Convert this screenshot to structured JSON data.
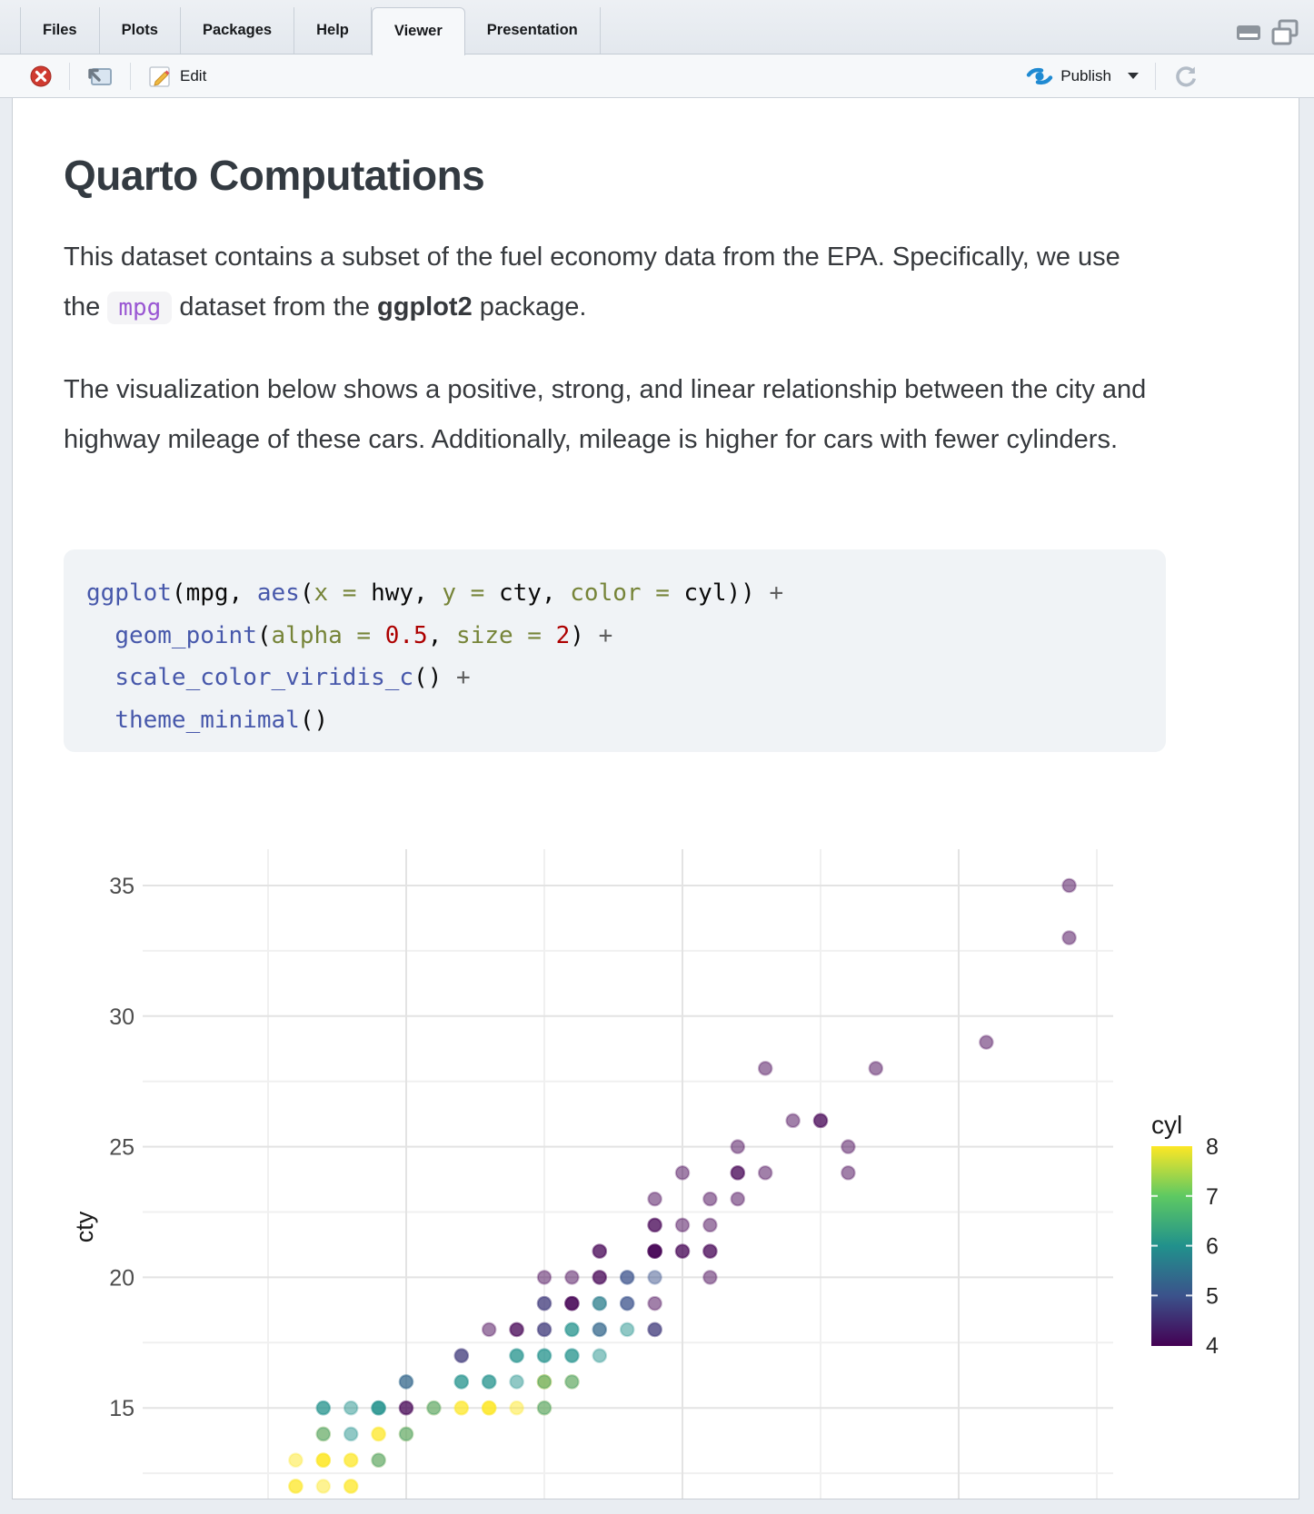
{
  "window": {
    "tabs": [
      {
        "label": "Files",
        "active": false
      },
      {
        "label": "Plots",
        "active": false
      },
      {
        "label": "Packages",
        "active": false
      },
      {
        "label": "Help",
        "active": false
      },
      {
        "label": "Viewer",
        "active": true
      },
      {
        "label": "Presentation",
        "active": false
      }
    ]
  },
  "toolbar": {
    "edit_label": "Edit",
    "publish_label": "Publish"
  },
  "document": {
    "title": "Quarto Computations",
    "paragraph1": [
      {
        "type": "text",
        "text": "This dataset contains a subset of the fuel economy data from the EPA. Specifically, we use the "
      },
      {
        "type": "code",
        "text": "mpg"
      },
      {
        "type": "text",
        "text": " dataset from the "
      },
      {
        "type": "bold",
        "text": "ggplot2"
      },
      {
        "type": "text",
        "text": " package."
      }
    ],
    "paragraph2": "The visualization below shows a positive, strong, and linear relationship between the city and highway mileage of these cars. Additionally, mileage is higher for cars with fewer cylinders."
  },
  "code_block": {
    "lines": [
      [
        [
          "fn",
          "ggplot"
        ],
        [
          "pl",
          "(mpg, "
        ],
        [
          "fn",
          "aes"
        ],
        [
          "pl",
          "("
        ],
        [
          "at",
          "x = "
        ],
        [
          "pl",
          "hwy, "
        ],
        [
          "at",
          "y = "
        ],
        [
          "pl",
          "cty, "
        ],
        [
          "at",
          "color = "
        ],
        [
          "pl",
          "cyl)) "
        ],
        [
          "op",
          "+"
        ]
      ],
      [
        [
          "pl",
          "  "
        ],
        [
          "fn",
          "geom_point"
        ],
        [
          "pl",
          "("
        ],
        [
          "at",
          "alpha = "
        ],
        [
          "num",
          "0.5"
        ],
        [
          "pl",
          ", "
        ],
        [
          "at",
          "size = "
        ],
        [
          "num",
          "2"
        ],
        [
          "pl",
          ") "
        ],
        [
          "op",
          "+"
        ]
      ],
      [
        [
          "pl",
          "  "
        ],
        [
          "fn",
          "scale_color_viridis_c"
        ],
        [
          "pl",
          "() "
        ],
        [
          "op",
          "+"
        ]
      ],
      [
        [
          "pl",
          "  "
        ],
        [
          "fn",
          "theme_minimal"
        ],
        [
          "pl",
          "()"
        ]
      ]
    ]
  },
  "colors": {
    "syntax": {
      "fn": "#4758AB",
      "at": "#768438",
      "num": "#AD0000",
      "pl": "#0a0a0a",
      "op": "#5E5E5E"
    },
    "inline_code_text": "#9a57d3",
    "publish_blue": "#1f8ad2",
    "close_red": "#cf3a30",
    "viridis": {
      "4": "#440154",
      "5": "#3b528b",
      "6": "#21918c",
      "7": "#5ec962",
      "8": "#fde725"
    }
  },
  "chart_data": {
    "type": "scatter",
    "x_var": "hwy",
    "y_var": "cty",
    "color_var": "cyl",
    "point_alpha": 0.5,
    "point_size": 2,
    "theme": "minimal",
    "y_axis_title": "cty",
    "y_tick_labels": [
      35,
      30,
      25,
      20,
      15
    ],
    "grid": {
      "y_major": [
        35,
        30,
        25,
        20,
        15
      ],
      "y_minor": [
        32.5,
        27.5,
        22.5,
        17.5,
        12.5
      ],
      "x_major": [
        20,
        30,
        40
      ],
      "x_minor": [
        15,
        25,
        35,
        45
      ]
    },
    "x_range_shown": [
      10.4,
      45.6
    ],
    "y_range_shown": [
      11,
      36.4
    ],
    "legend": {
      "title": "cyl",
      "position": "right",
      "tick_labels": [
        8,
        7,
        6,
        5,
        4
      ],
      "top_value": 8,
      "bottom_value": 4
    },
    "points": [
      [
        44,
        35,
        4
      ],
      [
        44,
        33,
        4
      ],
      [
        41,
        29,
        4
      ],
      [
        33,
        28,
        4
      ],
      [
        37,
        28,
        4
      ],
      [
        34,
        26,
        4
      ],
      [
        35,
        26,
        4
      ],
      [
        35,
        26,
        4
      ],
      [
        32,
        25,
        4
      ],
      [
        36,
        25,
        4
      ],
      [
        30,
        24,
        4
      ],
      [
        32,
        24,
        4
      ],
      [
        32,
        24,
        4
      ],
      [
        33,
        24,
        4
      ],
      [
        36,
        24,
        4
      ],
      [
        29,
        23,
        4
      ],
      [
        31,
        23,
        4
      ],
      [
        32,
        23,
        4
      ],
      [
        29,
        22,
        4
      ],
      [
        29,
        22,
        4
      ],
      [
        30,
        22,
        4
      ],
      [
        31,
        22,
        4
      ],
      [
        27,
        21,
        4
      ],
      [
        27,
        21,
        4
      ],
      [
        29,
        21,
        4
      ],
      [
        29,
        21,
        4
      ],
      [
        29,
        21,
        4
      ],
      [
        29,
        21,
        4
      ],
      [
        30,
        21,
        4
      ],
      [
        30,
        21,
        4
      ],
      [
        31,
        21,
        4
      ],
      [
        31,
        21,
        4
      ],
      [
        25,
        20,
        4
      ],
      [
        26,
        20,
        4
      ],
      [
        27,
        20,
        4
      ],
      [
        27,
        20,
        4
      ],
      [
        28,
        20,
        5
      ],
      [
        28,
        20,
        5
      ],
      [
        29,
        20,
        5
      ],
      [
        31,
        20,
        4
      ],
      [
        25,
        19,
        4
      ],
      [
        25,
        19,
        5
      ],
      [
        26,
        19,
        4
      ],
      [
        26,
        19,
        4
      ],
      [
        26,
        19,
        4
      ],
      [
        27,
        19,
        5
      ],
      [
        27,
        19,
        6
      ],
      [
        28,
        19,
        5
      ],
      [
        28,
        19,
        5
      ],
      [
        29,
        19,
        4
      ],
      [
        23,
        18,
        4
      ],
      [
        24,
        18,
        4
      ],
      [
        24,
        18,
        4
      ],
      [
        25,
        18,
        4
      ],
      [
        25,
        18,
        5
      ],
      [
        26,
        18,
        6
      ],
      [
        26,
        18,
        6
      ],
      [
        27,
        18,
        6
      ],
      [
        27,
        18,
        5
      ],
      [
        28,
        18,
        6
      ],
      [
        29,
        18,
        4
      ],
      [
        29,
        18,
        5
      ],
      [
        22,
        17,
        4
      ],
      [
        22,
        17,
        5
      ],
      [
        24,
        17,
        6
      ],
      [
        24,
        17,
        6
      ],
      [
        25,
        17,
        6
      ],
      [
        25,
        17,
        6
      ],
      [
        26,
        17,
        6
      ],
      [
        26,
        17,
        6
      ],
      [
        27,
        17,
        6
      ],
      [
        20,
        16,
        6
      ],
      [
        20,
        16,
        5
      ],
      [
        22,
        16,
        6
      ],
      [
        22,
        16,
        6
      ],
      [
        23,
        16,
        6
      ],
      [
        23,
        16,
        6
      ],
      [
        24,
        16,
        6
      ],
      [
        25,
        16,
        8
      ],
      [
        25,
        16,
        8
      ],
      [
        25,
        16,
        6
      ],
      [
        26,
        16,
        8
      ],
      [
        26,
        16,
        6
      ],
      [
        17,
        15,
        6
      ],
      [
        17,
        15,
        6
      ],
      [
        18,
        15,
        6
      ],
      [
        19,
        15,
        6
      ],
      [
        19,
        15,
        6
      ],
      [
        19,
        15,
        6
      ],
      [
        20,
        15,
        4
      ],
      [
        20,
        15,
        4
      ],
      [
        21,
        15,
        8
      ],
      [
        21,
        15,
        6
      ],
      [
        22,
        15,
        8
      ],
      [
        22,
        15,
        8
      ],
      [
        23,
        15,
        8
      ],
      [
        23,
        15,
        8
      ],
      [
        23,
        15,
        8
      ],
      [
        24,
        15,
        8
      ],
      [
        25,
        15,
        8
      ],
      [
        25,
        15,
        6
      ],
      [
        17,
        14,
        8
      ],
      [
        17,
        14,
        6
      ],
      [
        18,
        14,
        6
      ],
      [
        19,
        14,
        8
      ],
      [
        19,
        14,
        8
      ],
      [
        20,
        14,
        8
      ],
      [
        20,
        14,
        6
      ],
      [
        16,
        13,
        8
      ],
      [
        17,
        13,
        8
      ],
      [
        17,
        13,
        8
      ],
      [
        17,
        13,
        8
      ],
      [
        18,
        13,
        8
      ],
      [
        18,
        13,
        8
      ],
      [
        19,
        13,
        8
      ],
      [
        19,
        13,
        6
      ],
      [
        16,
        12,
        8
      ],
      [
        16,
        12,
        8
      ],
      [
        17,
        12,
        8
      ],
      [
        18,
        12,
        8
      ],
      [
        18,
        12,
        8
      ]
    ]
  }
}
